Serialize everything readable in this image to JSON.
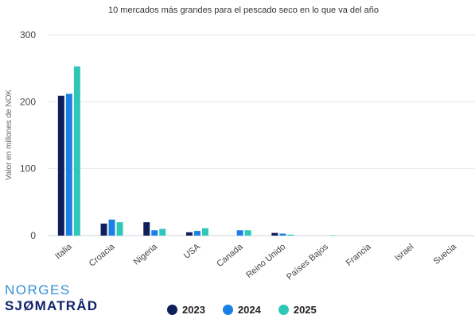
{
  "brand": {
    "line1": "NORGES",
    "line2": "SJØMATRÅD"
  },
  "colors": {
    "2023": "#0f1f5c",
    "2024": "#1a80e6",
    "2025": "#2ec7b8"
  },
  "chart_data": {
    "type": "bar",
    "title": "10 mercados más grandes para el pescado seco en lo que va del año",
    "xlabel": "",
    "ylabel": "Valor en millones de NOK",
    "ylim": [
      0,
      300
    ],
    "yticks": [
      0,
      100,
      200,
      300
    ],
    "grid": true,
    "legend_position": "bottom",
    "categories": [
      "Italia",
      "Croacia",
      "Nigeria",
      "USA",
      "Canada",
      "Reino Unido",
      "Países Bajos",
      "Francia",
      "Israel",
      "Suecia"
    ],
    "series": [
      {
        "name": "2023",
        "values": [
          209,
          18,
          20,
          5,
          0,
          4,
          0,
          0,
          0,
          0
        ]
      },
      {
        "name": "2024",
        "values": [
          212,
          24,
          8,
          7,
          8,
          3,
          0,
          0,
          0,
          0
        ]
      },
      {
        "name": "2025",
        "values": [
          253,
          20,
          10,
          11,
          8,
          1.5,
          0.5,
          0,
          0,
          0
        ]
      }
    ]
  }
}
